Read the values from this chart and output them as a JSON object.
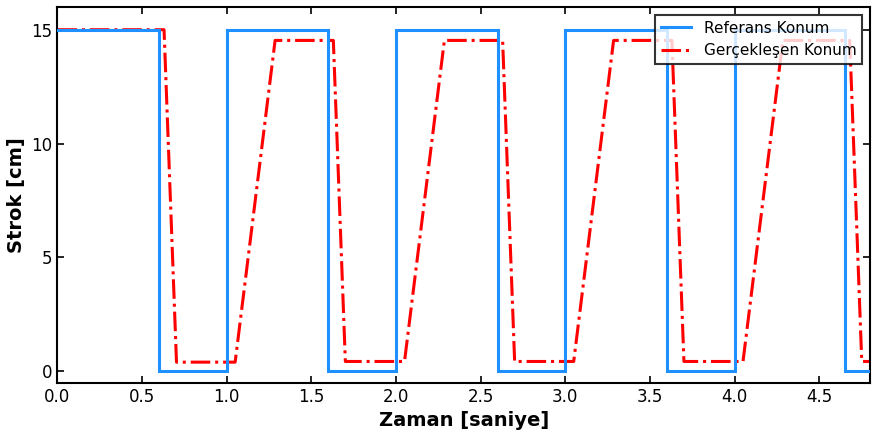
{
  "xlabel": "Zaman [saniye]",
  "ylabel": "Strok [cm]",
  "xlim": [
    0,
    4.8
  ],
  "ylim": [
    -0.5,
    16.0
  ],
  "yticks": [
    0,
    5,
    10,
    15
  ],
  "xticks": [
    0,
    0.5,
    1.0,
    1.5,
    2.0,
    2.5,
    3.0,
    3.5,
    4.0,
    4.5
  ],
  "legend_labels": [
    "Referans Konum",
    "Gerçekleşen Konum"
  ],
  "ref_color": "#1E90FF",
  "actual_color": "#FF0000",
  "ref_linewidth": 2.2,
  "actual_linewidth": 2.2,
  "xlabel_fontsize": 14,
  "ylabel_fontsize": 14,
  "legend_fontsize": 11,
  "tick_fontsize": 12,
  "high_val": 15,
  "low_val": 0,
  "background_color": "#ffffff",
  "ref_transitions": [
    [
      0.0,
      15
    ],
    [
      0.6,
      15
    ],
    [
      0.6,
      0
    ],
    [
      1.0,
      0
    ],
    [
      1.0,
      15
    ],
    [
      1.6,
      15
    ],
    [
      1.6,
      0
    ],
    [
      2.0,
      0
    ],
    [
      2.0,
      15
    ],
    [
      2.6,
      15
    ],
    [
      2.6,
      0
    ],
    [
      3.0,
      0
    ],
    [
      3.0,
      15
    ],
    [
      3.6,
      15
    ],
    [
      3.6,
      0
    ],
    [
      4.0,
      0
    ],
    [
      4.0,
      15
    ],
    [
      4.65,
      15
    ],
    [
      4.65,
      0
    ],
    [
      4.8,
      0
    ]
  ],
  "rise_slope": 60,
  "fall_slope": 200,
  "delay_rise": 0.05,
  "delay_fall": 0.03,
  "undershoot": -0.3,
  "undershoot_dur": 0.04
}
